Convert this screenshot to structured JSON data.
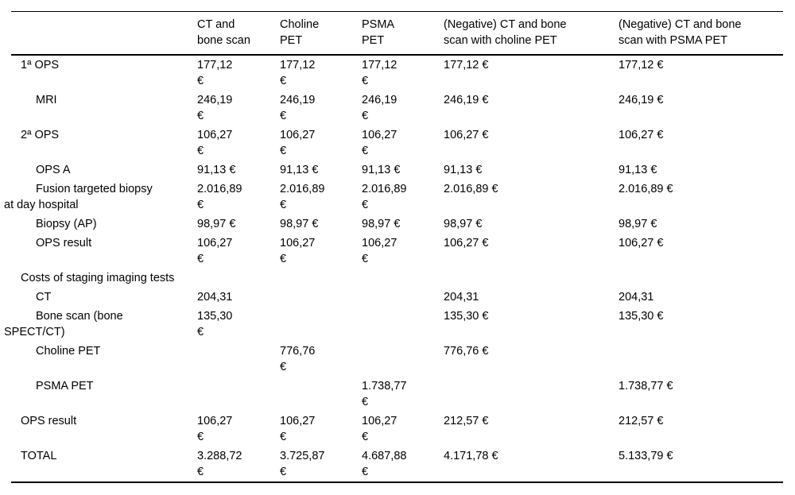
{
  "page": {
    "background_color": "#ffffff",
    "text_color": "#000000",
    "rule_color": "#000000"
  },
  "table": {
    "columns": [
      {
        "label": ""
      },
      {
        "label": "CT and\nbone scan"
      },
      {
        "label": "Choline\nPET"
      },
      {
        "label": "PSMA\nPET"
      },
      {
        "label": "(Negative) CT and bone\nscan with choline PET"
      },
      {
        "label": "(Negative) CT and bone\nscan with PSMA PET"
      }
    ],
    "rows": [
      {
        "label": "1ª OPS",
        "indent": 0,
        "values": [
          "177,12\n€",
          "177,12\n€",
          "177,12\n€",
          "177,12 €",
          "177,12 €"
        ]
      },
      {
        "label": "MRI",
        "indent": 1,
        "values": [
          "246,19\n€",
          "246,19\n€",
          "246,19\n€",
          "246,19 €",
          "246,19 €"
        ]
      },
      {
        "label": "2ª OPS",
        "indent": 0,
        "values": [
          "106,27\n€",
          "106,27\n€",
          "106,27\n€",
          "106,27 €",
          "106,27 €"
        ]
      },
      {
        "label": "OPS A",
        "indent": 1,
        "values": [
          "91,13 €",
          "91,13 €",
          "91,13 €",
          "91,13 €",
          "91,13 €"
        ]
      },
      {
        "label": "Fusion targeted biopsy\nat day hospital",
        "indent": 1,
        "values": [
          "2.016,89\n€",
          "2.016,89\n€",
          "2.016,89\n€",
          "2.016,89 €",
          "2.016,89 €"
        ]
      },
      {
        "label": "Biopsy (AP)",
        "indent": 1,
        "values": [
          "98,97 €",
          "98,97 €",
          "98,97 €",
          "98,97 €",
          "98,97 €"
        ]
      },
      {
        "label": "OPS result",
        "indent": 1,
        "values": [
          "106,27\n€",
          "106,27\n€",
          "106,27\n€",
          "106,27 €",
          "106,27 €"
        ]
      },
      {
        "label": "Costs of staging imaging tests",
        "indent": 0,
        "values": [
          "",
          "",
          "",
          "",
          ""
        ]
      },
      {
        "label": "CT",
        "indent": 1,
        "values": [
          "204,31",
          "",
          "",
          "204,31",
          "204,31"
        ]
      },
      {
        "label": "Bone scan (bone\nSPECT/CT)",
        "indent": 1,
        "values": [
          "135,30\n€",
          "",
          "",
          "135,30 €",
          "135,30 €"
        ]
      },
      {
        "label": "Choline PET",
        "indent": 1,
        "values": [
          "",
          "776,76\n€",
          "",
          "776,76 €",
          ""
        ]
      },
      {
        "label": "PSMA PET",
        "indent": 1,
        "values": [
          "",
          "",
          "1.738,77\n€",
          "",
          "1.738,77 €"
        ]
      },
      {
        "label": "OPS result",
        "indent": 0,
        "values": [
          "106,27\n€",
          "106,27\n€",
          "106,27\n€",
          "212,57 €",
          "212,57 €"
        ]
      },
      {
        "label": "TOTAL",
        "indent": 0,
        "values": [
          "3.288,72\n€",
          "3.725,87\n€",
          "4.687,88\n€",
          "4.171,78 €",
          "5.133,79 €"
        ]
      }
    ]
  }
}
